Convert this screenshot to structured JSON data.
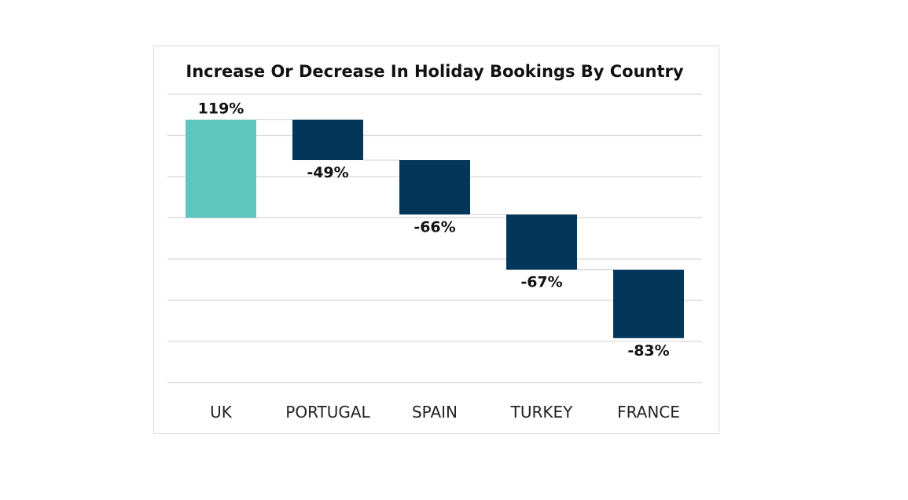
{
  "chart_data": {
    "type": "waterfall",
    "title": "Increase Or Decrease In Holiday Bookings By Country",
    "categories": [
      "UK",
      "PORTUGAL",
      "SPAIN",
      "TURKEY",
      "FRANCE"
    ],
    "values": [
      119,
      -49,
      -66,
      -67,
      -83
    ],
    "data_labels": [
      "119%",
      "-49%",
      "-66%",
      "-67%",
      "-83%"
    ],
    "unit": "%",
    "ylim": [
      -200,
      150
    ],
    "grid_step": 50,
    "grid": true,
    "y_tick_labels_shown": false,
    "legend": "none",
    "colors": {
      "increase": "#5fc5bf",
      "decrease": "#02375a",
      "grid": "#d9d9d9",
      "connector": "#d9d9d9"
    }
  }
}
